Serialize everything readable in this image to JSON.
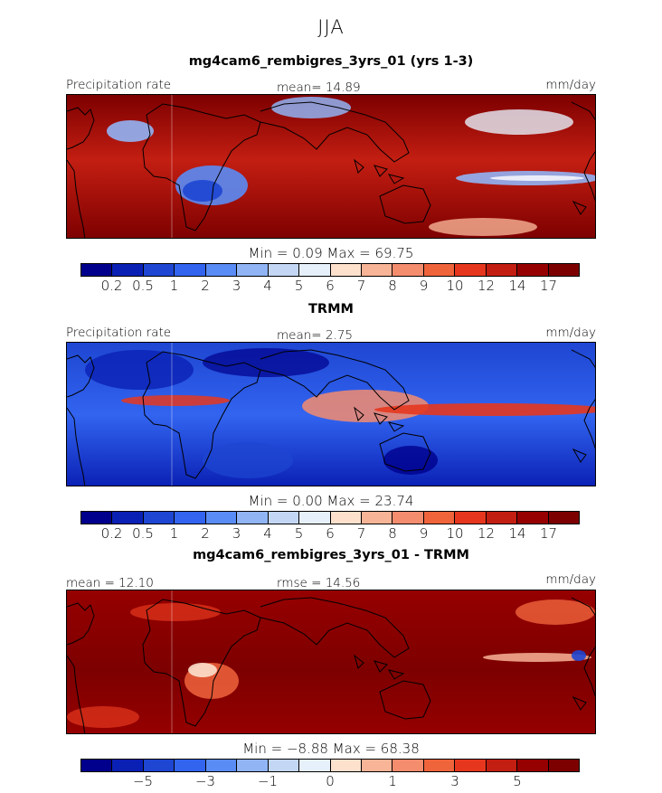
{
  "figure": {
    "season": "JJA"
  },
  "panels": [
    {
      "id": "model",
      "title": "mg4cam6_rembigres_3yrs_01 (yrs 1-3)",
      "left_label": "Precipitation rate",
      "center_label": "mean=  14.89",
      "right_label": "mm/day",
      "stats_text": "Min =    0.09  Max =   69.75",
      "colorbar_labels": [
        "0.2",
        "0.5",
        "1",
        "2",
        "3",
        "4",
        "5",
        "6",
        "7",
        "8",
        "9",
        "10",
        "12",
        "14",
        "17"
      ]
    },
    {
      "id": "obs",
      "title": "TRMM",
      "left_label": "Precipitation rate",
      "center_label": "mean=   2.75",
      "right_label": "mm/day",
      "stats_text": "Min =    0.00  Max =   23.74",
      "colorbar_labels": [
        "0.2",
        "0.5",
        "1",
        "2",
        "3",
        "4",
        "5",
        "6",
        "7",
        "8",
        "9",
        "10",
        "12",
        "14",
        "17"
      ]
    },
    {
      "id": "diff",
      "title": "mg4cam6_rembigres_3yrs_01 - TRMM",
      "left_label": "mean =  12.10",
      "center_label": "rmse =  14.56",
      "right_label": "mm/day",
      "stats_text": "Min =   −8.88  Max =   68.38",
      "colorbar_labels": [
        "−5",
        "−3",
        "−1",
        "0",
        "1",
        "3",
        "5"
      ]
    }
  ],
  "colors": {
    "palette": [
      "#00008c",
      "#0a20b4",
      "#1e46d2",
      "#3264f0",
      "#5a8cf5",
      "#91b4f5",
      "#c3d7f5",
      "#e6f0fa",
      "#fde1cd",
      "#f8b496",
      "#f48c6e",
      "#f0643c",
      "#e6371e",
      "#c31e12",
      "#960000",
      "#7d0000"
    ],
    "land": "#000000"
  },
  "chart_data": [
    {
      "type": "heatmap",
      "title": "mg4cam6_rembigres_3yrs_01 (yrs 1-3)",
      "variable": "Precipitation rate",
      "units": "mm/day",
      "mean": 14.89,
      "min": 0.09,
      "max": 69.75,
      "levels": [
        0.2,
        0.5,
        1,
        2,
        3,
        4,
        5,
        6,
        7,
        8,
        9,
        10,
        12,
        14,
        17
      ]
    },
    {
      "type": "heatmap",
      "title": "TRMM",
      "variable": "Precipitation rate",
      "units": "mm/day",
      "mean": 2.75,
      "min": 0.0,
      "max": 23.74,
      "levels": [
        0.2,
        0.5,
        1,
        2,
        3,
        4,
        5,
        6,
        7,
        8,
        9,
        10,
        12,
        14,
        17
      ]
    },
    {
      "type": "heatmap",
      "title": "mg4cam6_rembigres_3yrs_01 - TRMM",
      "units": "mm/day",
      "mean": 12.1,
      "rmse": 14.56,
      "min": -8.88,
      "max": 68.38,
      "levels": [
        -5,
        -3,
        -1,
        0,
        1,
        3,
        5
      ]
    }
  ]
}
